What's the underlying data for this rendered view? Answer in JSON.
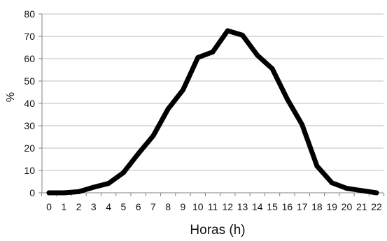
{
  "chart_data": {
    "type": "line",
    "title": "",
    "xlabel": "Horas (h)",
    "ylabel": "%",
    "x": [
      0,
      1,
      2,
      3,
      4,
      5,
      6,
      7,
      8,
      9,
      10,
      11,
      12,
      13,
      14,
      15,
      16,
      17,
      18,
      19,
      20,
      21,
      22
    ],
    "x_tick_labels": [
      "0",
      "1",
      "2",
      "3",
      "4",
      "5",
      "6",
      "7",
      "8",
      "9",
      "10",
      "11",
      "12",
      "13",
      "14",
      "15",
      "16",
      "17",
      "18",
      "19",
      "20",
      "21",
      "22"
    ],
    "y_ticks": [
      0,
      10,
      20,
      30,
      40,
      50,
      60,
      70,
      80
    ],
    "y_tick_labels": [
      "0",
      "10",
      "20",
      "30",
      "40",
      "50",
      "60",
      "70",
      "80"
    ],
    "ylim": [
      0,
      80
    ],
    "xlim": [
      0,
      22
    ],
    "grid": true,
    "legend": "none",
    "series": [
      {
        "values": [
          0,
          0,
          0.5,
          2.5,
          4.2,
          9,
          17.5,
          25.5,
          37.5,
          46,
          60.5,
          63,
          72.5,
          70.5,
          61.5,
          55.5,
          42,
          30.5,
          12,
          4.5,
          2,
          1,
          0
        ]
      }
    ],
    "colors": {
      "line": "#000000",
      "grid": "#bfbfbf",
      "axis": "#808080",
      "text": "#111111"
    }
  }
}
